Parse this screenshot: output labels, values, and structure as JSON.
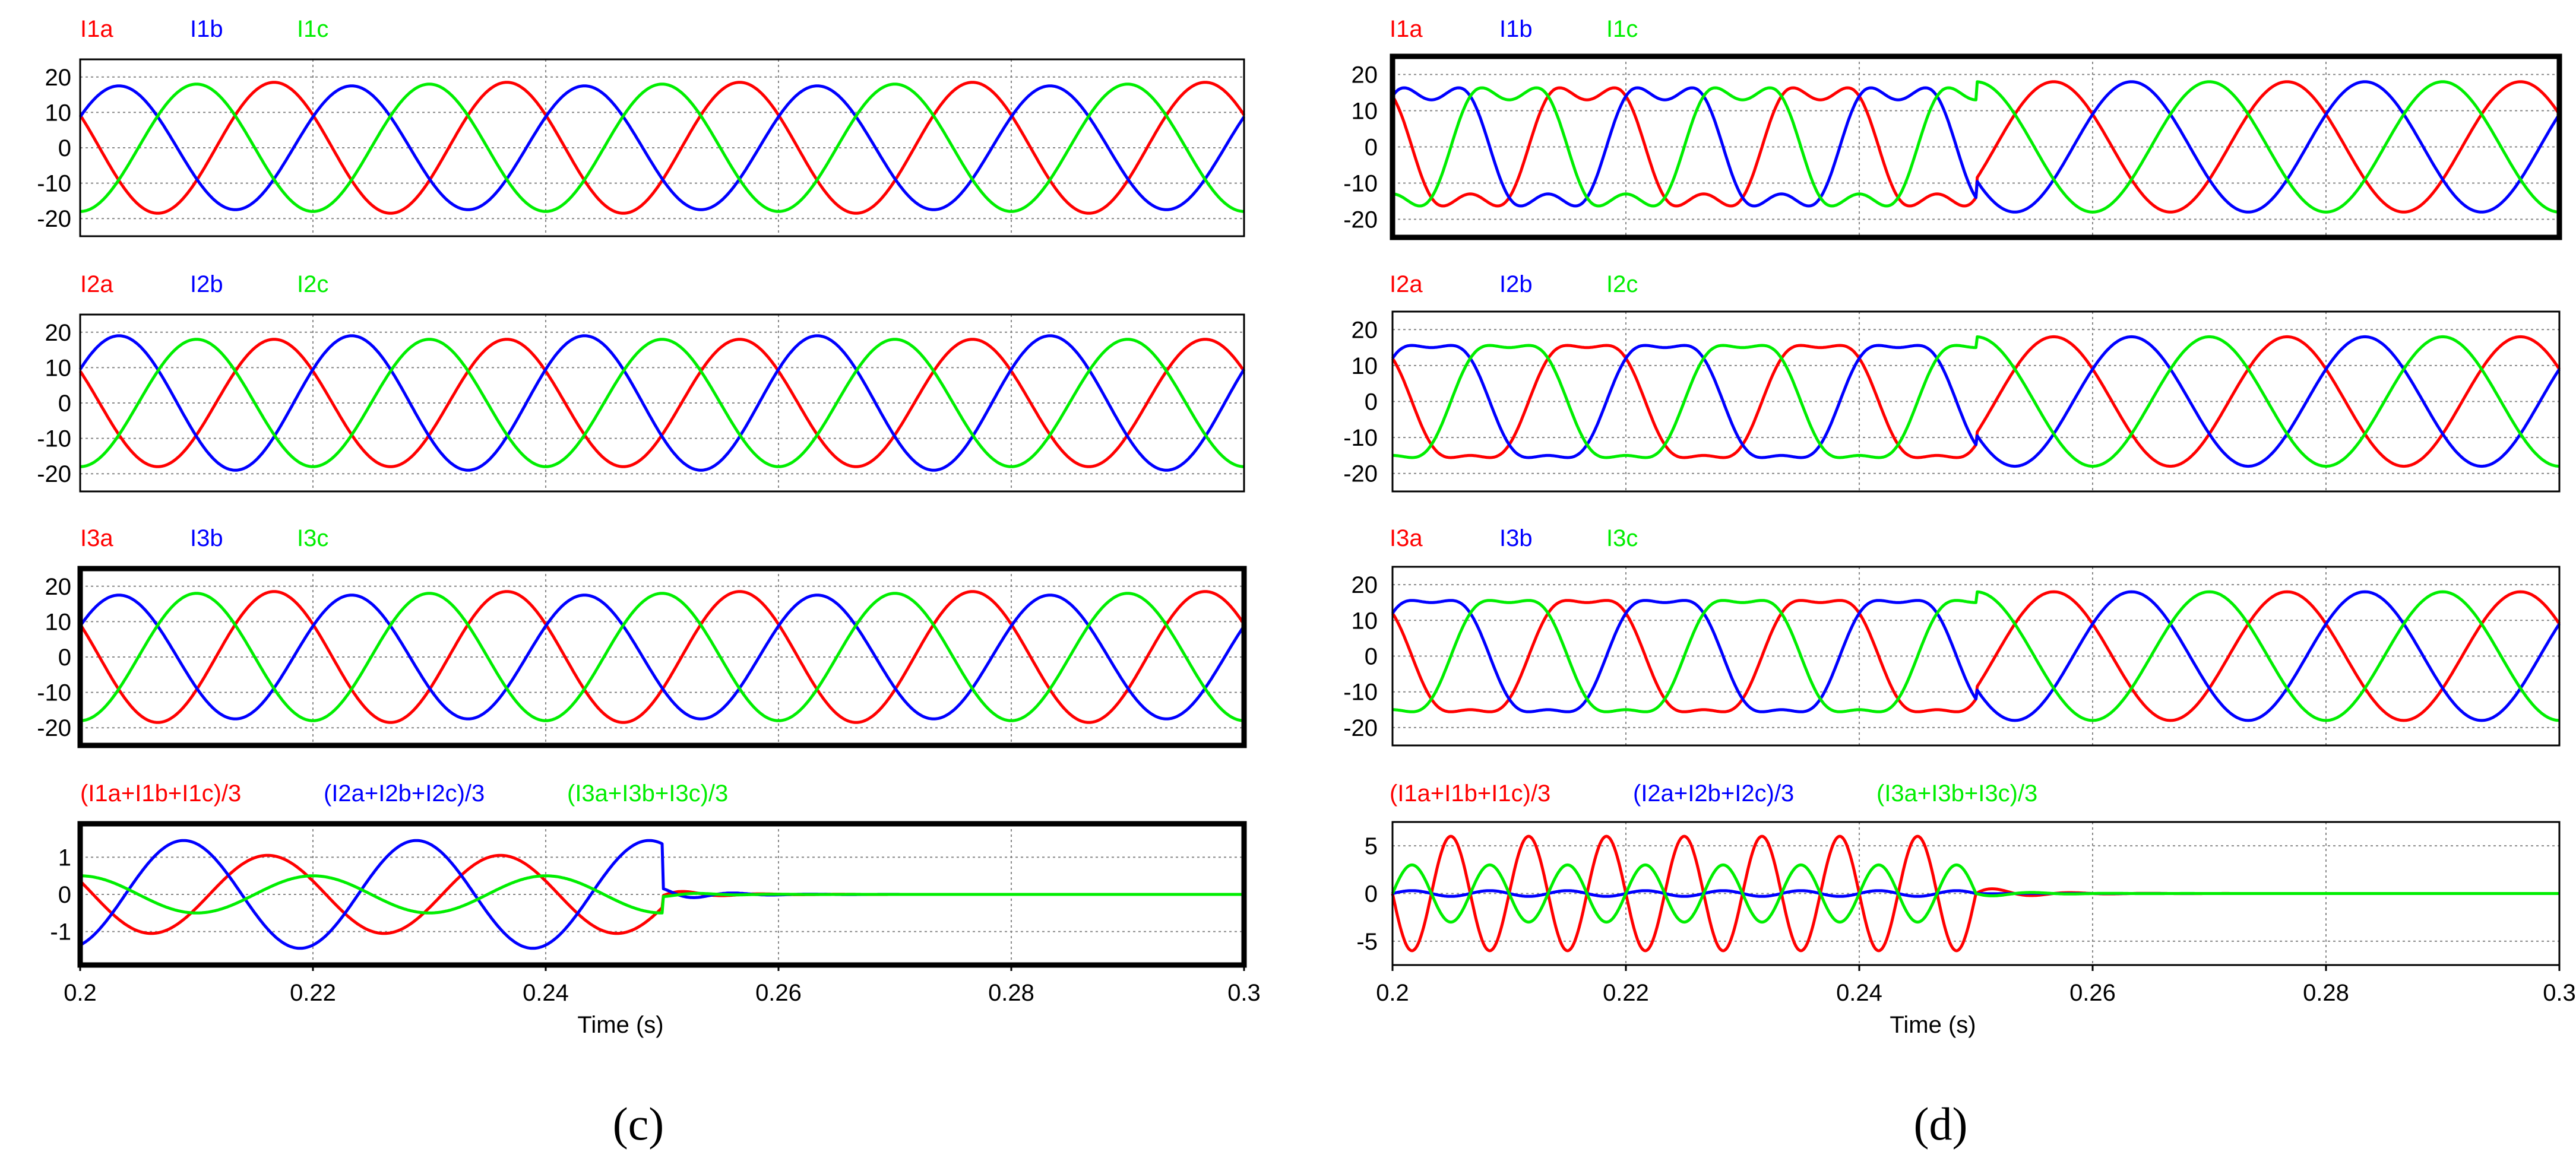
{
  "colors": {
    "a": "#ff0000",
    "b": "#0000ff",
    "c": "#00ee00",
    "axis": "#000000",
    "grid": "#888888"
  },
  "chart_data": [
    {
      "panel": "(c)",
      "type": "line",
      "xlabel": "Time (s)",
      "xlim": [
        0.2,
        0.3
      ],
      "xticks": [
        "0.2",
        "0.22",
        "0.24",
        "0.26",
        "0.28",
        "0.3"
      ],
      "grid": true,
      "subplots": [
        {
          "labels": [
            "I1a",
            "I1b",
            "I1c"
          ],
          "ylim": [
            -25,
            25
          ],
          "yticks": [
            "20",
            "10",
            "0",
            "-10",
            "-20"
          ],
          "series": [
            {
              "name": "I1a",
              "amplitude": 18.5,
              "frequency_hz": 50,
              "phase_deg": 150
            },
            {
              "name": "I1b",
              "amplitude": 17.5,
              "frequency_hz": 50,
              "phase_deg": 30
            },
            {
              "name": "I1c",
              "amplitude": 18,
              "frequency_hz": 50,
              "phase_deg": -90
            }
          ]
        },
        {
          "labels": [
            "I2a",
            "I2b",
            "I2c"
          ],
          "ylim": [
            -25,
            25
          ],
          "yticks": [
            "20",
            "10",
            "0",
            "-10",
            "-20"
          ],
          "series": [
            {
              "name": "I2a",
              "amplitude": 18,
              "frequency_hz": 50,
              "phase_deg": 150
            },
            {
              "name": "I2b",
              "amplitude": 19,
              "frequency_hz": 50,
              "phase_deg": 30
            },
            {
              "name": "I2c",
              "amplitude": 18,
              "frequency_hz": 50,
              "phase_deg": -90
            }
          ]
        },
        {
          "labels": [
            "I3a",
            "I3b",
            "I3c"
          ],
          "ylim": [
            -25,
            25
          ],
          "yticks": [
            "20",
            "10",
            "0",
            "-10",
            "-20"
          ],
          "series": [
            {
              "name": "I3a",
              "amplitude": 18.5,
              "frequency_hz": 50,
              "phase_deg": 150
            },
            {
              "name": "I3b",
              "amplitude": 17.5,
              "frequency_hz": 50,
              "phase_deg": 30
            },
            {
              "name": "I3c",
              "amplitude": 18,
              "frequency_hz": 50,
              "phase_deg": -90
            }
          ]
        },
        {
          "labels": [
            "(I1a+I1b+I1c)/3",
            "(I2a+I2b+I2c)/3",
            "(I3a+I3b+I3c)/3"
          ],
          "ylim": [
            -1.9,
            1.9
          ],
          "yticks": [
            "1",
            "0",
            "-1"
          ],
          "series": [
            {
              "name": "(I1a+I1b+I1c)/3",
              "amplitude": 1.05,
              "frequency_hz": 50,
              "phase_deg": 160,
              "until_s": 0.25
            },
            {
              "name": "(I2a+I2b+I2c)/3",
              "amplitude": 1.45,
              "frequency_hz": 50,
              "phase_deg": -70,
              "until_s": 0.25
            },
            {
              "name": "(I3a+I3b+I3c)/3",
              "amplitude": 0.5,
              "frequency_hz": 50,
              "phase_deg": 90,
              "until_s": 0.25
            }
          ]
        }
      ]
    },
    {
      "panel": "(d)",
      "type": "line",
      "xlabel": "Time (s)",
      "xlim": [
        0.2,
        0.3
      ],
      "xticks": [
        "0.2",
        "0.22",
        "0.24",
        "0.26",
        "0.28",
        "0.3"
      ],
      "grid": true,
      "subplots": [
        {
          "labels": [
            "I1a",
            "I1b",
            "I1c"
          ],
          "ylim": [
            -25,
            25
          ],
          "yticks": [
            "20",
            "10",
            "0",
            "-10",
            "-20"
          ],
          "series": [
            {
              "name": "I1a",
              "amplitude": 18,
              "frequency_hz": 50,
              "phase_deg": 150,
              "harmonic": 3,
              "harmonic_amplitude": 5,
              "harmonic_until_s": 0.25
            },
            {
              "name": "I1b",
              "amplitude": 18,
              "frequency_hz": 50,
              "phase_deg": 30,
              "harmonic": 3,
              "harmonic_amplitude": 5,
              "harmonic_until_s": 0.25
            },
            {
              "name": "I1c",
              "amplitude": 18,
              "frequency_hz": 50,
              "phase_deg": -90,
              "harmonic": 3,
              "harmonic_amplitude": 5,
              "harmonic_until_s": 0.25
            }
          ]
        },
        {
          "labels": [
            "I2a",
            "I2b",
            "I2c"
          ],
          "ylim": [
            -25,
            25
          ],
          "yticks": [
            "20",
            "10",
            "0",
            "-10",
            "-20"
          ],
          "series": [
            {
              "name": "I2a",
              "amplitude": 18,
              "frequency_hz": 50,
              "phase_deg": 150,
              "harmonic": 3,
              "harmonic_amplitude": 3,
              "harmonic_until_s": 0.25
            },
            {
              "name": "I2b",
              "amplitude": 18,
              "frequency_hz": 50,
              "phase_deg": 30,
              "harmonic": 3,
              "harmonic_amplitude": 3,
              "harmonic_until_s": 0.25
            },
            {
              "name": "I2c",
              "amplitude": 18,
              "frequency_hz": 50,
              "phase_deg": -90,
              "harmonic": 3,
              "harmonic_amplitude": 3,
              "harmonic_until_s": 0.25
            }
          ]
        },
        {
          "labels": [
            "I3a",
            "I3b",
            "I3c"
          ],
          "ylim": [
            -25,
            25
          ],
          "yticks": [
            "20",
            "10",
            "0",
            "-10",
            "-20"
          ],
          "series": [
            {
              "name": "I3a",
              "amplitude": 18,
              "frequency_hz": 50,
              "phase_deg": 150,
              "harmonic": 3,
              "harmonic_amplitude": 3,
              "harmonic_until_s": 0.25
            },
            {
              "name": "I3b",
              "amplitude": 18,
              "frequency_hz": 50,
              "phase_deg": 30,
              "harmonic": 3,
              "harmonic_amplitude": 3,
              "harmonic_until_s": 0.25
            },
            {
              "name": "I3c",
              "amplitude": 18,
              "frequency_hz": 50,
              "phase_deg": -90,
              "harmonic": 3,
              "harmonic_amplitude": 3,
              "harmonic_until_s": 0.25
            }
          ]
        },
        {
          "labels": [
            "(I1a+I1b+I1c)/3",
            "(I2a+I2b+I2c)/3",
            "(I3a+I3b+I3c)/3"
          ],
          "ylim": [
            -7.5,
            7.5
          ],
          "yticks": [
            "5",
            "0",
            "-5"
          ],
          "series": [
            {
              "name": "(I1a+I1b+I1c)/3",
              "amplitude": 6,
              "frequency_hz": 150,
              "phase_deg": 180,
              "until_s": 0.25
            },
            {
              "name": "(I2a+I2b+I2c)/3",
              "amplitude": 0.3,
              "frequency_hz": 150,
              "phase_deg": 0,
              "until_s": 0.25
            },
            {
              "name": "(I3a+I3b+I3c)/3",
              "amplitude": 3,
              "frequency_hz": 150,
              "phase_deg": 0,
              "until_s": 0.25
            }
          ]
        }
      ]
    }
  ]
}
